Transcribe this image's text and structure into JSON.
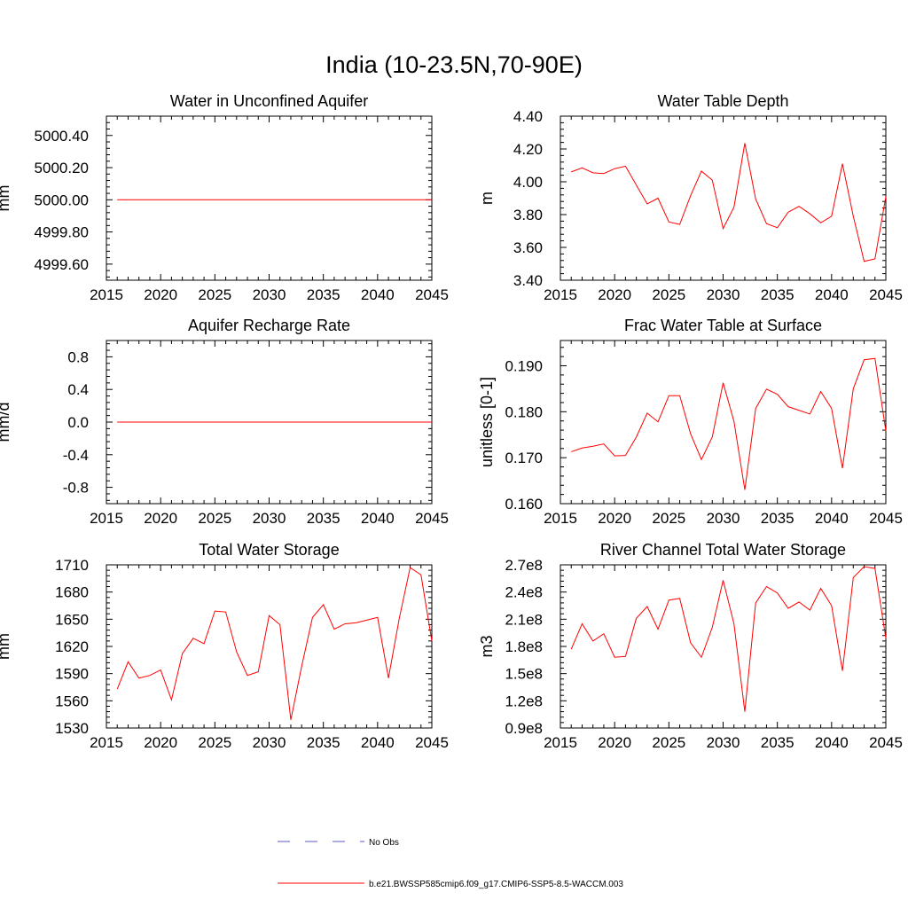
{
  "figure": {
    "title": "India (10-23.5N,70-90E)"
  },
  "legend": {
    "entries": [
      {
        "label": "No Obs",
        "color": "#5a5acc",
        "style": "dashed"
      },
      {
        "label": "b.e21.BWSSP585cmip6.f09_g17.CMIP6-SSP5-8.5-WACCM.003",
        "color": "#ff0000",
        "style": "solid"
      }
    ]
  },
  "colors": {
    "series": "#ff0000",
    "obs": "#5a5acc",
    "axis": "#000000"
  },
  "chart_data": [
    {
      "type": "line",
      "title": "Water in Unconfined Aquifer",
      "xlabel": "",
      "ylabel": "mm",
      "xlim": [
        2015,
        2045
      ],
      "ylim": [
        4999.5,
        5000.52
      ],
      "xticks": [
        2015,
        2020,
        2025,
        2030,
        2035,
        2040,
        2045
      ],
      "xtick_labels": [
        "2015",
        "2020",
        "2025",
        "2030",
        "2035",
        "2040",
        "2045"
      ],
      "yticks": [
        4999.6,
        4999.8,
        5000.0,
        5000.2,
        5000.4
      ],
      "ytick_labels": [
        "4999.60",
        "4999.80",
        "5000.00",
        "5000.20",
        "5000.40"
      ],
      "x": [
        2016,
        2017,
        2018,
        2019,
        2020,
        2021,
        2022,
        2023,
        2024,
        2025,
        2026,
        2027,
        2028,
        2029,
        2030,
        2031,
        2032,
        2033,
        2034,
        2035,
        2036,
        2037,
        2038,
        2039,
        2040,
        2041,
        2042,
        2043,
        2044,
        2045
      ],
      "series": [
        {
          "values": [
            5000,
            5000,
            5000,
            5000,
            5000,
            5000,
            5000,
            5000,
            5000,
            5000,
            5000,
            5000,
            5000,
            5000,
            5000,
            5000,
            5000,
            5000,
            5000,
            5000,
            5000,
            5000,
            5000,
            5000,
            5000,
            5000,
            5000,
            5000,
            5000,
            5000
          ]
        }
      ]
    },
    {
      "type": "line",
      "title": "Water Table Depth",
      "xlabel": "",
      "ylabel": "m",
      "xlim": [
        2015,
        2045
      ],
      "ylim": [
        3.4,
        4.4
      ],
      "xticks": [
        2015,
        2020,
        2025,
        2030,
        2035,
        2040,
        2045
      ],
      "xtick_labels": [
        "2015",
        "2020",
        "2025",
        "2030",
        "2035",
        "2040",
        "2045"
      ],
      "yticks": [
        3.4,
        3.6,
        3.8,
        4.0,
        4.2,
        4.4
      ],
      "ytick_labels": [
        "3.40",
        "3.60",
        "3.80",
        "4.00",
        "4.20",
        "4.40"
      ],
      "x": [
        2016,
        2017,
        2018,
        2019,
        2020,
        2021,
        2022,
        2023,
        2024,
        2025,
        2026,
        2027,
        2028,
        2029,
        2030,
        2031,
        2032,
        2033,
        2034,
        2035,
        2036,
        2037,
        2038,
        2039,
        2040,
        2041,
        2042,
        2043,
        2044,
        2045
      ],
      "series": [
        {
          "values": [
            4.06,
            4.085,
            4.055,
            4.05,
            4.08,
            4.095,
            3.98,
            3.865,
            3.9,
            3.755,
            3.74,
            3.915,
            4.065,
            4.01,
            3.715,
            3.845,
            4.235,
            3.895,
            3.745,
            3.72,
            3.815,
            3.85,
            3.805,
            3.75,
            3.79,
            4.11,
            3.79,
            3.515,
            3.53,
            3.91
          ]
        }
      ]
    },
    {
      "type": "line",
      "title": "Aquifer Recharge Rate",
      "xlabel": "",
      "ylabel": "mm/d",
      "xlim": [
        2015,
        2045
      ],
      "ylim": [
        -1.0,
        1.0
      ],
      "xticks": [
        2015,
        2020,
        2025,
        2030,
        2035,
        2040,
        2045
      ],
      "xtick_labels": [
        "2015",
        "2020",
        "2025",
        "2030",
        "2035",
        "2040",
        "2045"
      ],
      "yticks": [
        -0.8,
        -0.4,
        0.0,
        0.4,
        0.8
      ],
      "ytick_labels": [
        "-0.8",
        "-0.4",
        "0.0",
        "0.4",
        "0.8"
      ],
      "x": [
        2016,
        2017,
        2018,
        2019,
        2020,
        2021,
        2022,
        2023,
        2024,
        2025,
        2026,
        2027,
        2028,
        2029,
        2030,
        2031,
        2032,
        2033,
        2034,
        2035,
        2036,
        2037,
        2038,
        2039,
        2040,
        2041,
        2042,
        2043,
        2044,
        2045
      ],
      "series": [
        {
          "values": [
            0,
            0,
            0,
            0,
            0,
            0,
            0,
            0,
            0,
            0,
            0,
            0,
            0,
            0,
            0,
            0,
            0,
            0,
            0,
            0,
            0,
            0,
            0,
            0,
            0,
            0,
            0,
            0,
            0,
            0
          ]
        }
      ]
    },
    {
      "type": "line",
      "title": "Frac Water Table at Surface",
      "xlabel": "",
      "ylabel": "unitless [0-1]",
      "xlim": [
        2015,
        2045
      ],
      "ylim": [
        0.16,
        0.1955
      ],
      "xticks": [
        2015,
        2020,
        2025,
        2030,
        2035,
        2040,
        2045
      ],
      "xtick_labels": [
        "2015",
        "2020",
        "2025",
        "2030",
        "2035",
        "2040",
        "2045"
      ],
      "yticks": [
        0.16,
        0.17,
        0.18,
        0.19
      ],
      "ytick_labels": [
        "0.160",
        "0.170",
        "0.180",
        "0.190"
      ],
      "x": [
        2016,
        2017,
        2018,
        2019,
        2020,
        2021,
        2022,
        2023,
        2024,
        2025,
        2026,
        2027,
        2028,
        2029,
        2030,
        2031,
        2032,
        2033,
        2034,
        2035,
        2036,
        2037,
        2038,
        2039,
        2040,
        2041,
        2042,
        2043,
        2044,
        2045
      ],
      "series": [
        {
          "values": [
            0.1713,
            0.1721,
            0.1725,
            0.173,
            0.1704,
            0.1705,
            0.1745,
            0.1797,
            0.1778,
            0.1835,
            0.1835,
            0.1752,
            0.1696,
            0.1745,
            0.1863,
            0.1779,
            0.163,
            0.1807,
            0.1849,
            0.1838,
            0.1811,
            0.1803,
            0.1795,
            0.1844,
            0.1807,
            0.1677,
            0.185,
            0.1913,
            0.1916,
            0.1758
          ]
        }
      ]
    },
    {
      "type": "line",
      "title": "Total Water Storage",
      "xlabel": "",
      "ylabel": "mm",
      "xlim": [
        2015,
        2045
      ],
      "ylim": [
        1530,
        1710
      ],
      "xticks": [
        2015,
        2020,
        2025,
        2030,
        2035,
        2040,
        2045
      ],
      "xtick_labels": [
        "2015",
        "2020",
        "2025",
        "2030",
        "2035",
        "2040",
        "2045"
      ],
      "yticks": [
        1530,
        1560,
        1590,
        1620,
        1650,
        1680,
        1710
      ],
      "ytick_labels": [
        "1530",
        "1560",
        "1590",
        "1620",
        "1650",
        "1680",
        "1710"
      ],
      "x": [
        2016,
        2017,
        2018,
        2019,
        2020,
        2021,
        2022,
        2023,
        2024,
        2025,
        2026,
        2027,
        2028,
        2029,
        2030,
        2031,
        2032,
        2033,
        2034,
        2035,
        2036,
        2037,
        2038,
        2039,
        2040,
        2041,
        2042,
        2043,
        2044,
        2045
      ],
      "series": [
        {
          "values": [
            1573,
            1603,
            1585,
            1588,
            1594,
            1561,
            1612,
            1629,
            1623,
            1659,
            1658,
            1614,
            1588,
            1592,
            1654,
            1644,
            1539,
            1598,
            1652,
            1666,
            1639,
            1645,
            1646,
            1649,
            1652,
            1585,
            1651,
            1707,
            1699,
            1626
          ]
        }
      ]
    },
    {
      "type": "line",
      "title": "River Channel Total Water Storage",
      "xlabel": "",
      "ylabel": "m3",
      "xlim": [
        2015,
        2045
      ],
      "ylim": [
        90000000,
        270000000
      ],
      "xticks": [
        2015,
        2020,
        2025,
        2030,
        2035,
        2040,
        2045
      ],
      "xtick_labels": [
        "2015",
        "2020",
        "2025",
        "2030",
        "2035",
        "2040",
        "2045"
      ],
      "yticks": [
        90000000,
        120000000,
        150000000,
        180000000,
        210000000,
        240000000,
        270000000
      ],
      "ytick_labels": [
        "0.9e8",
        "1.2e8",
        "1.5e8",
        "1.8e8",
        "2.1e8",
        "2.4e8",
        "2.7e8"
      ],
      "x": [
        2016,
        2017,
        2018,
        2019,
        2020,
        2021,
        2022,
        2023,
        2024,
        2025,
        2026,
        2027,
        2028,
        2029,
        2030,
        2031,
        2032,
        2033,
        2034,
        2035,
        2036,
        2037,
        2038,
        2039,
        2040,
        2041,
        2042,
        2043,
        2044,
        2045
      ],
      "series": [
        {
          "values": [
            177000000,
            205000000,
            186000000,
            194000000,
            168000000,
            169000000,
            211000000,
            224000000,
            199000000,
            231000000,
            233000000,
            184000000,
            168000000,
            201000000,
            253000000,
            205000000,
            108000000,
            228000000,
            246000000,
            239000000,
            222000000,
            229000000,
            220000000,
            244000000,
            225000000,
            153000000,
            256000000,
            268000000,
            266000000,
            189000000
          ]
        }
      ]
    }
  ]
}
